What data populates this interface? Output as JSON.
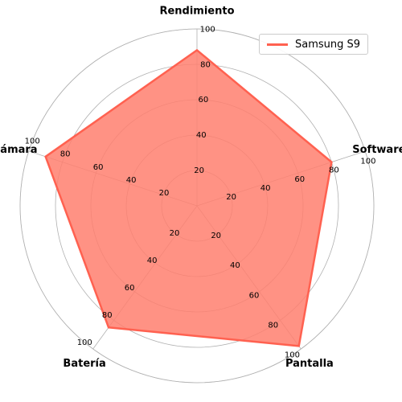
{
  "chart_data": {
    "type": "radar",
    "title": "",
    "categories": [
      "Rendimiento",
      "Software",
      "Pantalla",
      "Batería",
      "Cámara"
    ],
    "series": [
      {
        "name": "Samsung S9",
        "values": [
          88,
          80,
          98,
          85,
          90
        ]
      }
    ],
    "rlim": [
      0,
      100
    ],
    "radial_ticks": [
      20,
      40,
      60,
      80,
      100
    ],
    "grid": true,
    "legend_position": "top-right",
    "colors": {
      "line": "#ff6150",
      "fill": "#ff7f6e",
      "grid": "#b0b0b0"
    }
  }
}
